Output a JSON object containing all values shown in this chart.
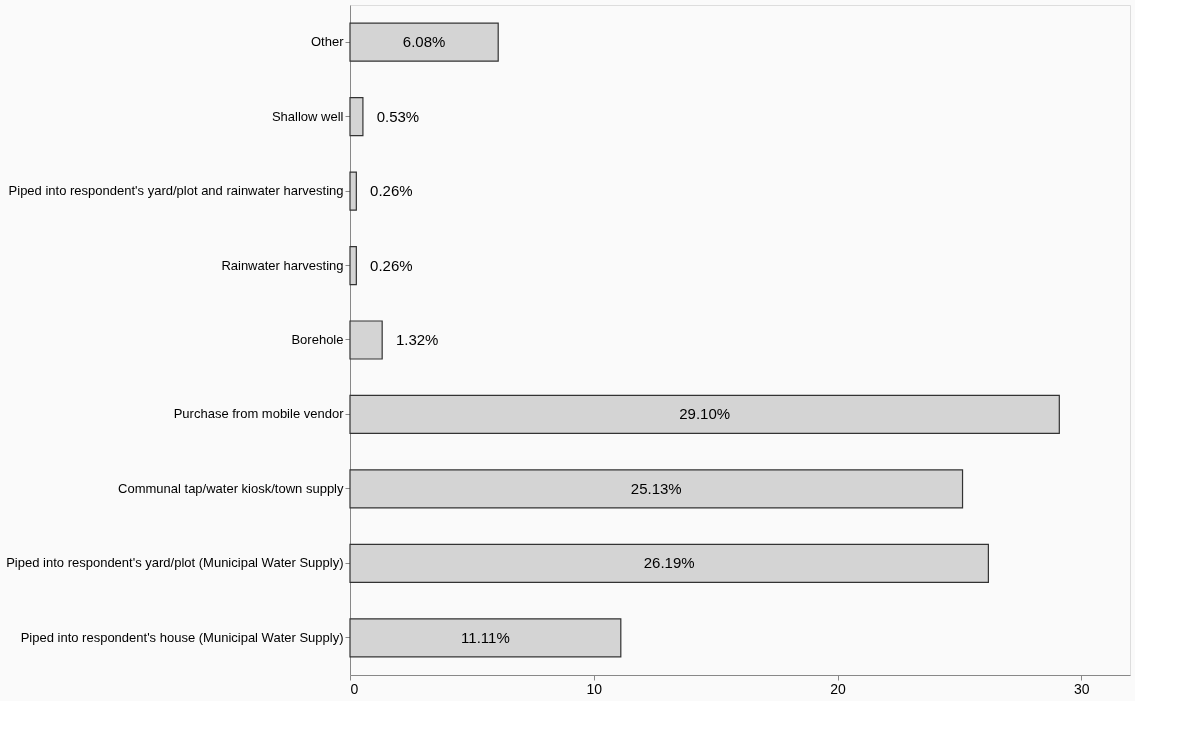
{
  "chart_data": {
    "type": "bar",
    "orientation": "horizontal",
    "categories": [
      "Other",
      "Shallow well",
      "Piped into respondent's yard/plot and rainwater harvesting",
      "Rainwater harvesting",
      "Borehole",
      "Purchase from mobile vendor",
      "Communal tap/water kiosk/town supply",
      "Piped into respondent's yard/plot (Municipal Water Supply)",
      "Piped into respondent's house (Municipal Water Supply)"
    ],
    "values": [
      6.08,
      0.53,
      0.26,
      0.26,
      1.32,
      29.1,
      25.13,
      26.19,
      11.11
    ],
    "value_labels": [
      "6.08%",
      "0.53%",
      "0.26%",
      "0.26%",
      "1.32%",
      "29.10%",
      "25.13%",
      "26.19%",
      "11.11%"
    ],
    "color": "#d4d4d4",
    "xlim": [
      0,
      32
    ],
    "xticks": [
      0,
      10,
      20,
      30
    ],
    "grid": false
  }
}
